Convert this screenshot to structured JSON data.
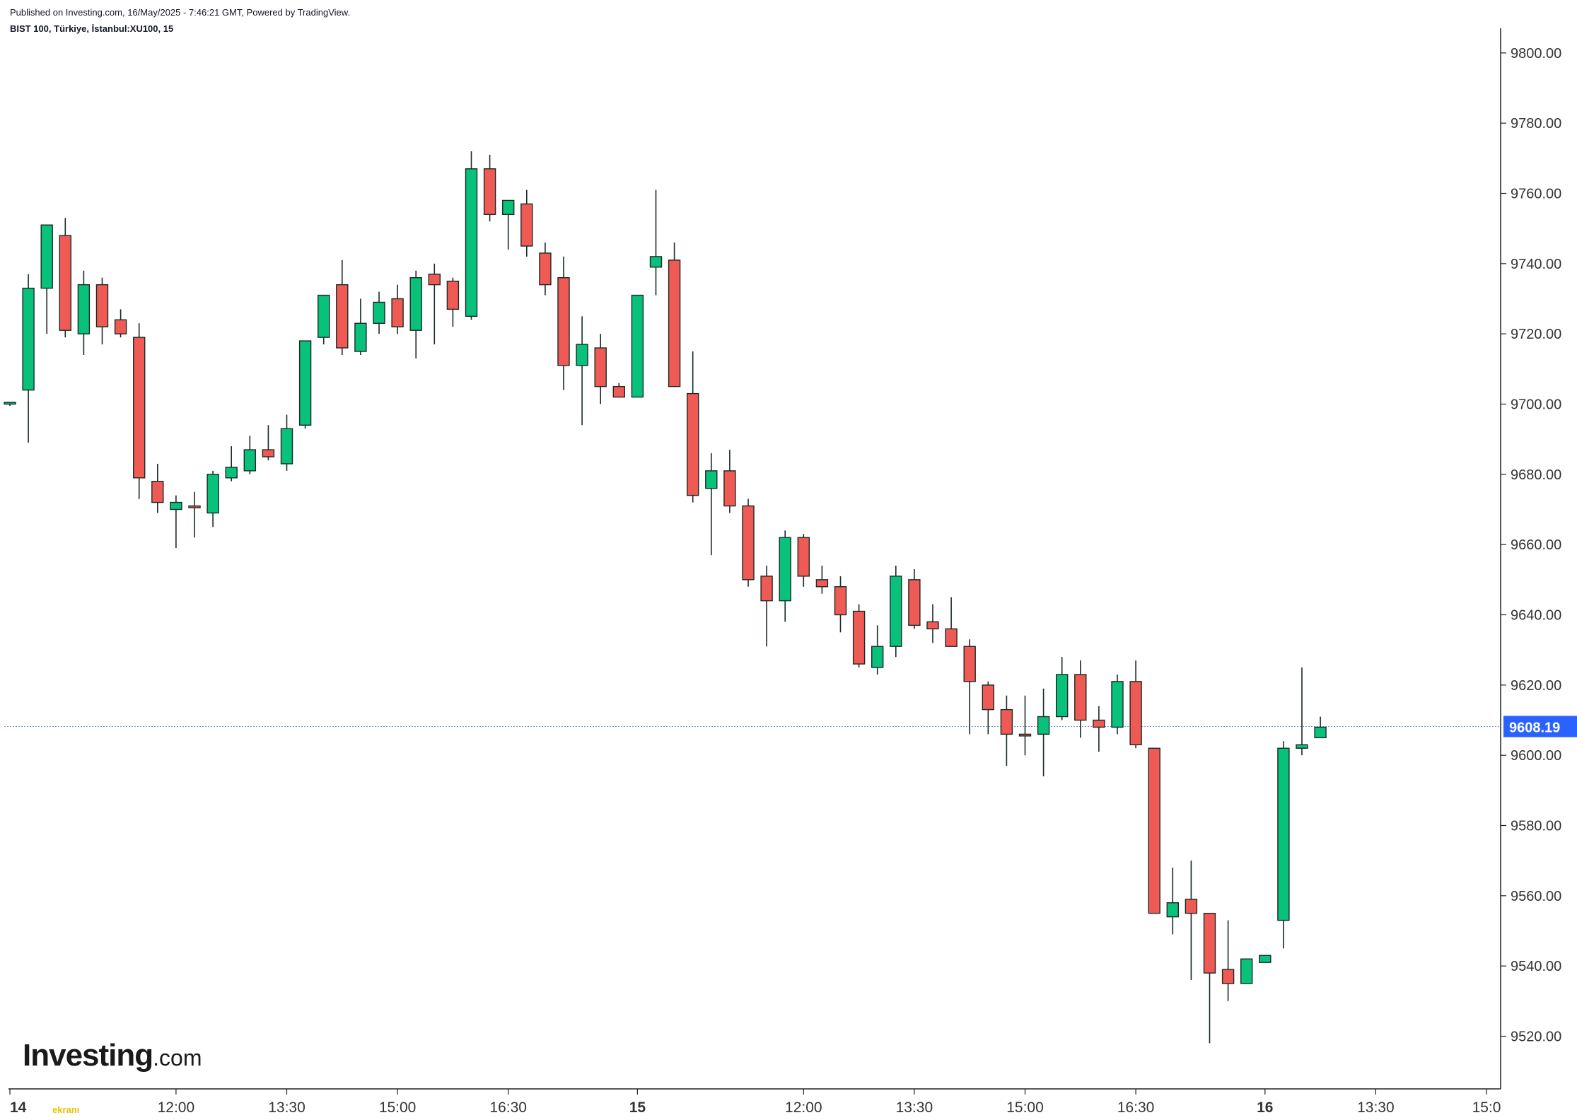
{
  "header": {
    "published": "Published on Investing.com, 16/May/2025 - 7:46:21 GMT, Powered by TradingView.",
    "symbol": "BIST 100, Türkiye, İstanbul:XU100, 15"
  },
  "branding": {
    "logo_main": "Investing",
    "logo_suffix": ".com",
    "watermark": "ekranı"
  },
  "colors": {
    "up": "#08c17a",
    "down": "#f05a55",
    "wick": "#1a2a26",
    "last_price_bg": "#2962ff",
    "grid_line": "#7a95d6"
  },
  "chart_data": {
    "type": "candlestick",
    "y_axis": {
      "min": 9505,
      "max": 9805,
      "ticks": [
        9520,
        9540,
        9560,
        9580,
        9600,
        9620,
        9640,
        9660,
        9680,
        9700,
        9720,
        9740,
        9760,
        9780,
        9800
      ],
      "tick_labels": [
        "9520.00",
        "9540.00",
        "9560.00",
        "9580.00",
        "9600.00",
        "9620.00",
        "9640.00",
        "9660.00",
        "9680.00",
        "9700.00",
        "9720.00",
        "9740.00",
        "9760.00",
        "9780.00",
        "9800.00"
      ]
    },
    "x_axis": {
      "labels": [
        {
          "text": "14",
          "bar": 0,
          "bold": true
        },
        {
          "text": "12:00",
          "bar": 9,
          "bold": false
        },
        {
          "text": "13:30",
          "bar": 15,
          "bold": false
        },
        {
          "text": "15:00",
          "bar": 21,
          "bold": false
        },
        {
          "text": "16:30",
          "bar": 27,
          "bold": false
        },
        {
          "text": "15",
          "bar": 34,
          "bold": true
        },
        {
          "text": "12:00",
          "bar": 43,
          "bold": false
        },
        {
          "text": "13:30",
          "bar": 49,
          "bold": false
        },
        {
          "text": "15:00",
          "bar": 55,
          "bold": false
        },
        {
          "text": "16:30",
          "bar": 61,
          "bold": false
        },
        {
          "text": "16",
          "bar": 68,
          "bold": true
        },
        {
          "text": "13:30",
          "bar": 74,
          "bold": false
        },
        {
          "text": "15:0",
          "bar": 80,
          "bold": false
        }
      ]
    },
    "last_price": 9608.19,
    "last_price_label": "9608.19",
    "candles": [
      {
        "o": 9700,
        "h": 9700.5,
        "l": 9699.5,
        "c": 9700.5
      },
      {
        "o": 9704,
        "h": 9737,
        "l": 9689,
        "c": 9733
      },
      {
        "o": 9733,
        "h": 9751,
        "l": 9720,
        "c": 9751
      },
      {
        "o": 9748,
        "h": 9753,
        "l": 9719,
        "c": 9721
      },
      {
        "o": 9720,
        "h": 9738,
        "l": 9714,
        "c": 9734
      },
      {
        "o": 9734,
        "h": 9736,
        "l": 9717,
        "c": 9722
      },
      {
        "o": 9724,
        "h": 9727,
        "l": 9719,
        "c": 9720
      },
      {
        "o": 9719,
        "h": 9723,
        "l": 9673,
        "c": 9679
      },
      {
        "o": 9678,
        "h": 9683,
        "l": 9669,
        "c": 9672
      },
      {
        "o": 9670,
        "h": 9674,
        "l": 9659,
        "c": 9672
      },
      {
        "o": 9671,
        "h": 9675,
        "l": 9662,
        "c": 9670.5
      },
      {
        "o": 9669,
        "h": 9681,
        "l": 9665,
        "c": 9680
      },
      {
        "o": 9679,
        "h": 9688,
        "l": 9678,
        "c": 9682
      },
      {
        "o": 9681,
        "h": 9691,
        "l": 9680,
        "c": 9687
      },
      {
        "o": 9687,
        "h": 9694,
        "l": 9684,
        "c": 9685
      },
      {
        "o": 9683,
        "h": 9697,
        "l": 9681,
        "c": 9693
      },
      {
        "o": 9694,
        "h": 9718,
        "l": 9693,
        "c": 9718
      },
      {
        "o": 9719,
        "h": 9731,
        "l": 9717,
        "c": 9731
      },
      {
        "o": 9734,
        "h": 9741,
        "l": 9714,
        "c": 9716
      },
      {
        "o": 9715,
        "h": 9730,
        "l": 9714,
        "c": 9723
      },
      {
        "o": 9723,
        "h": 9732,
        "l": 9720,
        "c": 9729
      },
      {
        "o": 9730,
        "h": 9734,
        "l": 9720,
        "c": 9722
      },
      {
        "o": 9721,
        "h": 9738,
        "l": 9713,
        "c": 9736
      },
      {
        "o": 9737,
        "h": 9740,
        "l": 9717,
        "c": 9734
      },
      {
        "o": 9735,
        "h": 9736,
        "l": 9722,
        "c": 9727
      },
      {
        "o": 9725,
        "h": 9772,
        "l": 9724,
        "c": 9767
      },
      {
        "o": 9767,
        "h": 9771,
        "l": 9752,
        "c": 9754
      },
      {
        "o": 9754,
        "h": 9758,
        "l": 9744,
        "c": 9758
      },
      {
        "o": 9757,
        "h": 9761,
        "l": 9742,
        "c": 9745
      },
      {
        "o": 9743,
        "h": 9746,
        "l": 9731,
        "c": 9734
      },
      {
        "o": 9736,
        "h": 9742,
        "l": 9704,
        "c": 9711
      },
      {
        "o": 9711,
        "h": 9725,
        "l": 9694,
        "c": 9717
      },
      {
        "o": 9716,
        "h": 9720,
        "l": 9700,
        "c": 9705
      },
      {
        "o": 9705,
        "h": 9706,
        "l": 9702,
        "c": 9702
      },
      {
        "o": 9702,
        "h": 9731,
        "l": 9702,
        "c": 9731
      },
      {
        "o": 9739,
        "h": 9761,
        "l": 9731,
        "c": 9742
      },
      {
        "o": 9741,
        "h": 9746,
        "l": 9705,
        "c": 9705
      },
      {
        "o": 9703,
        "h": 9715,
        "l": 9672,
        "c": 9674
      },
      {
        "o": 9676,
        "h": 9686,
        "l": 9657,
        "c": 9681
      },
      {
        "o": 9681,
        "h": 9687,
        "l": 9669,
        "c": 9671
      },
      {
        "o": 9671,
        "h": 9673,
        "l": 9648,
        "c": 9650
      },
      {
        "o": 9651,
        "h": 9654,
        "l": 9631,
        "c": 9644
      },
      {
        "o": 9644,
        "h": 9664,
        "l": 9638,
        "c": 9662
      },
      {
        "o": 9662,
        "h": 9663,
        "l": 9648,
        "c": 9651
      },
      {
        "o": 9650,
        "h": 9654,
        "l": 9646,
        "c": 9648
      },
      {
        "o": 9648,
        "h": 9651,
        "l": 9635,
        "c": 9640
      },
      {
        "o": 9641,
        "h": 9643,
        "l": 9625,
        "c": 9626
      },
      {
        "o": 9625,
        "h": 9637,
        "l": 9623,
        "c": 9631
      },
      {
        "o": 9631,
        "h": 9654,
        "l": 9628,
        "c": 9651
      },
      {
        "o": 9650,
        "h": 9653,
        "l": 9636,
        "c": 9637
      },
      {
        "o": 9638,
        "h": 9643,
        "l": 9632,
        "c": 9636
      },
      {
        "o": 9636,
        "h": 9645,
        "l": 9631,
        "c": 9631
      },
      {
        "o": 9631,
        "h": 9633,
        "l": 9606,
        "c": 9621
      },
      {
        "o": 9620,
        "h": 9621,
        "l": 9606,
        "c": 9613
      },
      {
        "o": 9613,
        "h": 9617,
        "l": 9597,
        "c": 9606
      },
      {
        "o": 9606,
        "h": 9617,
        "l": 9600,
        "c": 9605.5
      },
      {
        "o": 9606,
        "h": 9619,
        "l": 9594,
        "c": 9611
      },
      {
        "o": 9611,
        "h": 9628,
        "l": 9610,
        "c": 9623
      },
      {
        "o": 9623,
        "h": 9627,
        "l": 9605,
        "c": 9610
      },
      {
        "o": 9610,
        "h": 9614,
        "l": 9601,
        "c": 9608
      },
      {
        "o": 9608,
        "h": 9623,
        "l": 9606,
        "c": 9621
      },
      {
        "o": 9621,
        "h": 9627,
        "l": 9602,
        "c": 9603
      },
      {
        "o": 9602,
        "h": 9602,
        "l": 9555,
        "c": 9555
      },
      {
        "o": 9554,
        "h": 9568,
        "l": 9549,
        "c": 9558
      },
      {
        "o": 9559,
        "h": 9570,
        "l": 9536,
        "c": 9555
      },
      {
        "o": 9555,
        "h": 9555,
        "l": 9518,
        "c": 9538
      },
      {
        "o": 9539,
        "h": 9553,
        "l": 9530,
        "c": 9535
      },
      {
        "o": 9535,
        "h": 9542,
        "l": 9535,
        "c": 9542
      },
      {
        "o": 9541,
        "h": 9543,
        "l": 9541,
        "c": 9543
      },
      {
        "o": 9553,
        "h": 9604,
        "l": 9545,
        "c": 9602
      },
      {
        "o": 9602,
        "h": 9625,
        "l": 9600,
        "c": 9603
      },
      {
        "o": 9605,
        "h": 9611,
        "l": 9605,
        "c": 9608
      }
    ]
  }
}
